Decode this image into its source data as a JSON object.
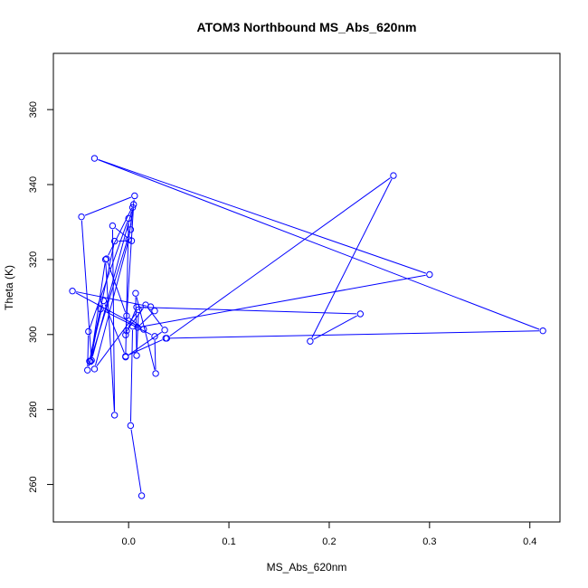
{
  "chart_data": {
    "type": "line",
    "title": "ATOM3 Northbound MS_Abs_620nm",
    "xlabel": "MS_Abs_620nm",
    "ylabel": "Theta (K)",
    "xlim": [
      -0.075,
      0.43
    ],
    "ylim": [
      250,
      375
    ],
    "xticks": [
      0.0,
      0.1,
      0.2,
      0.3,
      0.4
    ],
    "xtick_labels": [
      "0.0",
      "0.1",
      "0.2",
      "0.3",
      "0.4"
    ],
    "yticks": [
      260,
      280,
      300,
      320,
      340,
      360
    ],
    "ytick_labels": [
      "260",
      "280",
      "300",
      "320",
      "340",
      "360"
    ],
    "grid": false,
    "markers": "open-circle",
    "color": "#0000ff",
    "series": [
      {
        "points": [
          [
            0.013,
            257.0
          ],
          [
            0.002,
            275.7
          ],
          [
            0.004,
            302.2
          ],
          [
            -0.002,
            301.0
          ],
          [
            0.017,
            307.9
          ],
          [
            0.036,
            301.2
          ],
          [
            -0.003,
            294.0
          ],
          [
            0.0,
            331.0
          ],
          [
            -0.04,
            300.8
          ],
          [
            -0.041,
            290.5
          ],
          [
            0.002,
            328.0
          ],
          [
            0.004,
            333.9
          ],
          [
            -0.037,
            293.1
          ],
          [
            -0.047,
            331.4
          ],
          [
            0.006,
            337.0
          ],
          [
            0.0,
            325.3
          ],
          [
            -0.034,
            290.8
          ],
          [
            0.01,
            306.6
          ],
          [
            0.008,
            294.4
          ],
          [
            0.007,
            311.0
          ],
          [
            0.027,
            289.6
          ],
          [
            0.026,
            299.5
          ],
          [
            -0.028,
            306.8
          ],
          [
            -0.038,
            292.8
          ],
          [
            -0.023,
            320.0
          ],
          [
            -0.014,
            278.5
          ],
          [
            -0.016,
            329.0
          ],
          [
            0.003,
            325.0
          ],
          [
            -0.014,
            324.9
          ],
          [
            -0.039,
            292.9
          ],
          [
            -0.025,
            309.0
          ],
          [
            -0.003,
            294.2
          ],
          [
            0.037,
            299.0
          ],
          [
            0.413,
            301.0
          ],
          [
            -0.034,
            347.0
          ],
          [
            0.3,
            316.0
          ],
          [
            0.009,
            301.9
          ],
          [
            0.026,
            306.3
          ],
          [
            0.022,
            307.4
          ],
          [
            -0.056,
            311.6
          ],
          [
            0.015,
            301.4
          ],
          [
            -0.002,
            305.0
          ],
          [
            -0.022,
            320.2
          ],
          [
            0.005,
            334.7
          ],
          [
            -0.003,
            299.9
          ],
          [
            0.008,
            307.3
          ],
          [
            0.231,
            305.5
          ],
          [
            0.181,
            298.2
          ],
          [
            0.264,
            342.4
          ],
          [
            0.038,
            299.0
          ]
        ]
      }
    ]
  }
}
